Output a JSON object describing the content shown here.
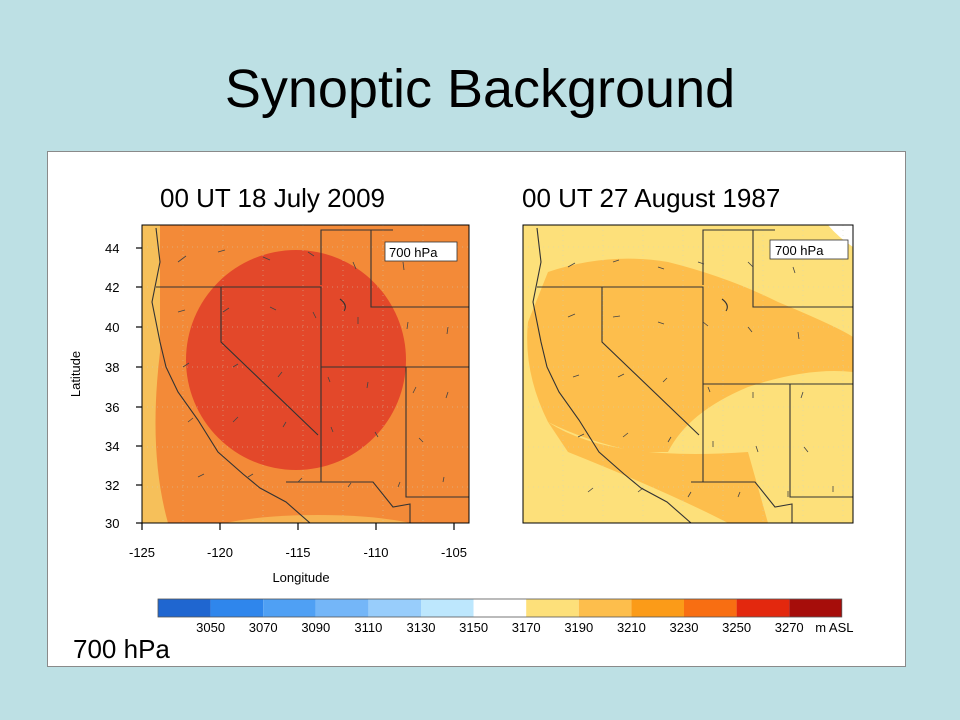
{
  "slide": {
    "title": "Synoptic Background",
    "level_label": "700 hPa"
  },
  "maps": [
    {
      "title": "00 UT  18 July 2009",
      "inset_label": "700 hPa"
    },
    {
      "title": "00 UT  27 August 1987",
      "inset_label": "700 hPa"
    }
  ],
  "axes": {
    "ylabel": "Latitude",
    "xlabel": "Longitude",
    "lat_ticks": [
      "44",
      "42",
      "40",
      "38",
      "36",
      "34",
      "32",
      "30"
    ],
    "lon_ticks": [
      "-125",
      "-120",
      "-115",
      "-110",
      "-105"
    ]
  },
  "colorbar": {
    "unit": "m ASL",
    "labels": [
      "3050",
      "3070",
      "3090",
      "3110",
      "3130",
      "3150",
      "3170",
      "3190",
      "3210",
      "3230",
      "3250",
      "3270"
    ],
    "colors": [
      "#1f66d0",
      "#2f86ec",
      "#4fa0f4",
      "#74b6f8",
      "#98cdfb",
      "#bde7fd",
      "#ffffff",
      "#fde07a",
      "#fdbe4c",
      "#fb9b18",
      "#f86e12",
      "#e3280e",
      "#a60d0a"
    ]
  }
}
